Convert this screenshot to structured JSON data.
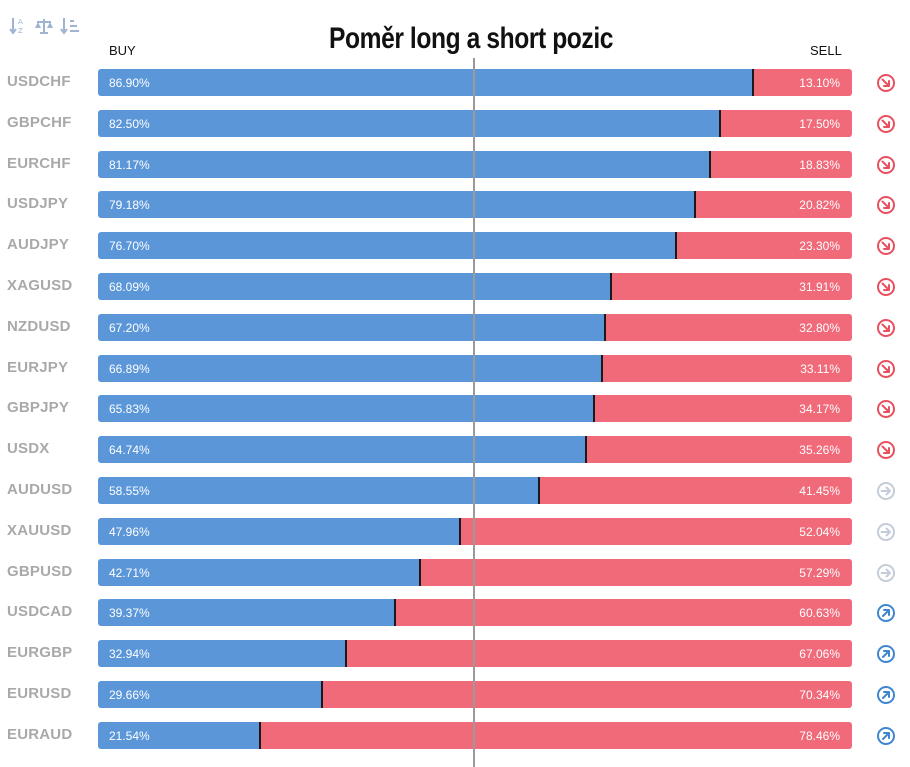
{
  "title": "Poměr long a short pozic",
  "columns": {
    "buy": "BUY",
    "sell": "SELL"
  },
  "toolbar": {
    "icons": [
      "sort-alpha-icon",
      "balance-icon",
      "sort-amount-icon"
    ]
  },
  "colors": {
    "buy": "#5a96d8",
    "sell": "#f06a7a",
    "down": "#e8505f",
    "neutral": "#c4ccd8",
    "up": "#3f86cf"
  },
  "chart_data": {
    "type": "bar",
    "stacked": true,
    "orientation": "horizontal",
    "categories": [
      "USDCHF",
      "GBPCHF",
      "EURCHF",
      "USDJPY",
      "AUDJPY",
      "XAGUSD",
      "NZDUSD",
      "EURJPY",
      "GBPJPY",
      "USDX",
      "AUDUSD",
      "XAUUSD",
      "GBPUSD",
      "USDCAD",
      "EURGBP",
      "EURUSD",
      "EURAUD"
    ],
    "xlim": [
      0,
      100
    ],
    "series": [
      {
        "name": "BUY",
        "values": [
          86.9,
          82.5,
          81.17,
          79.18,
          76.7,
          68.09,
          67.2,
          66.89,
          65.83,
          64.74,
          58.55,
          47.96,
          42.71,
          39.37,
          32.94,
          29.66,
          21.54
        ],
        "labels": [
          "86.90%",
          "82.50%",
          "81.17%",
          "79.18%",
          "76.70%",
          "68.09%",
          "67.20%",
          "66.89%",
          "65.83%",
          "64.74%",
          "58.55%",
          "47.96%",
          "42.71%",
          "39.37%",
          "32.94%",
          "29.66%",
          "21.54%"
        ]
      },
      {
        "name": "SELL",
        "values": [
          13.1,
          17.5,
          18.83,
          20.82,
          23.3,
          31.91,
          32.8,
          33.11,
          34.17,
          35.26,
          41.45,
          52.04,
          57.29,
          60.63,
          67.06,
          70.34,
          78.46
        ],
        "labels": [
          "13.10%",
          "17.50%",
          "18.83%",
          "20.82%",
          "23.30%",
          "31.91%",
          "32.80%",
          "33.11%",
          "34.17%",
          "35.26%",
          "41.45%",
          "52.04%",
          "57.29%",
          "60.63%",
          "67.06%",
          "70.34%",
          "78.46%"
        ]
      }
    ],
    "trend_icons": [
      "down",
      "down",
      "down",
      "down",
      "down",
      "down",
      "down",
      "down",
      "down",
      "down",
      "neutral",
      "neutral",
      "neutral",
      "up",
      "up",
      "up",
      "up"
    ],
    "grid": false
  }
}
